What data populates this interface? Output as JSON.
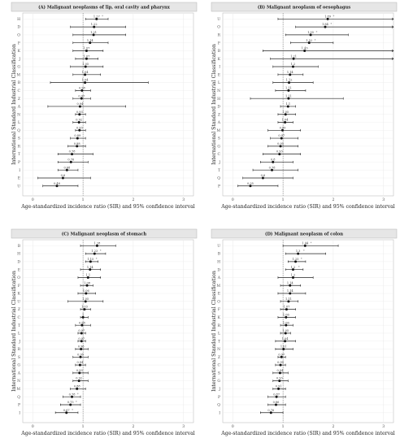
{
  "chart_data": [
    {
      "type": "forest",
      "title": "(A) Malignant neoplasms of lip, oral cavity and pharynx",
      "xlabel": "Age-standardized incidence ratio (SIR) and 95% confidence interval",
      "ylabel": "International Standard Industrial Classification",
      "xlim": [
        -0.2,
        3.2
      ],
      "xticks": [
        0,
        1,
        2,
        3
      ],
      "reference_line": 1,
      "categories": [
        "H",
        "D",
        "O",
        "F",
        "K",
        "J",
        "G",
        "M",
        "B",
        "C",
        "Z",
        "A",
        "N",
        "L",
        "Q",
        "S",
        "R",
        "T",
        "P",
        "I",
        "E",
        "U"
      ],
      "sir": [
        1.27,
        1.22,
        1.21,
        1.14,
        1.07,
        1.07,
        1.05,
        1.04,
        1.04,
        0.98,
        0.97,
        0.94,
        0.93,
        0.92,
        0.93,
        0.89,
        0.88,
        0.78,
        0.76,
        0.68,
        0.6,
        0.48
      ],
      "lower": [
        1.05,
        0.75,
        0.8,
        0.8,
        0.8,
        0.85,
        0.75,
        0.8,
        0.35,
        0.85,
        0.8,
        0.3,
        0.85,
        0.8,
        0.85,
        0.75,
        0.7,
        0.5,
        0.5,
        0.5,
        0.1,
        0.2
      ],
      "upper": [
        1.5,
        1.85,
        1.85,
        1.5,
        1.4,
        1.3,
        1.4,
        1.35,
        2.3,
        1.15,
        1.15,
        1.85,
        1.05,
        1.05,
        1.05,
        1.05,
        1.05,
        1.2,
        1.1,
        0.9,
        1.15,
        0.9
      ],
      "significance": [
        "*",
        "",
        "",
        "",
        "",
        "",
        "",
        "",
        "",
        "",
        "",
        "",
        "",
        "",
        "",
        "",
        "",
        "",
        "",
        "",
        "",
        ""
      ]
    },
    {
      "type": "forest",
      "title": "(B) Malignant neoplasm of oesophagus",
      "xlabel": "Age-standardized incidence ratio (SIR) and 95% confidence interval",
      "ylabel": "International Standard Industrial Classification",
      "xlim": [
        -0.2,
        3.2
      ],
      "xticks": [
        0,
        1,
        2,
        3
      ],
      "reference_line": 1,
      "categories": [
        "U",
        "O",
        "R",
        "F",
        "B",
        "K",
        "I",
        "E",
        "L",
        "N",
        "H",
        "D",
        "Z",
        "A",
        "M",
        "S",
        "G",
        "C",
        "J",
        "T",
        "Q",
        "P"
      ],
      "sir": [
        1.89,
        1.84,
        1.55,
        1.52,
        1.43,
        1.21,
        1.2,
        1.14,
        1.12,
        1.11,
        1.11,
        1.1,
        1.05,
        1.04,
        0.99,
        0.97,
        0.95,
        0.93,
        0.8,
        0.78,
        0.6,
        0.35
      ],
      "lower": [
        0.9,
        1.25,
        1.05,
        1.15,
        0.6,
        0.75,
        0.8,
        0.9,
        0.8,
        0.85,
        0.35,
        0.95,
        0.9,
        0.9,
        0.7,
        0.75,
        0.7,
        0.6,
        0.55,
        0.4,
        0.2,
        0.1
      ],
      "upper": [
        3.2,
        3.2,
        2.3,
        2.0,
        3.2,
        3.2,
        1.7,
        1.4,
        1.6,
        1.45,
        2.2,
        1.25,
        1.25,
        1.2,
        1.35,
        1.3,
        1.3,
        1.35,
        1.2,
        1.3,
        1.2,
        0.9
      ],
      "significance": [
        "*",
        "*",
        "*",
        "*",
        "",
        "",
        "",
        "",
        "",
        "",
        "",
        "",
        "",
        "",
        "",
        "",
        "",
        "",
        "",
        "",
        "",
        ""
      ]
    },
    {
      "type": "forest",
      "title": "(C) Malignant neoplasm of stomach",
      "xlabel": "Age-standardized incidence ratio (SIR) and 95% confidence interval",
      "ylabel": "International Standard Industrial Classification",
      "xlim": [
        -0.2,
        3.2
      ],
      "xticks": [
        0,
        1,
        2,
        3
      ],
      "reference_line": 1,
      "categories": [
        "B",
        "H",
        "D",
        "E",
        "O",
        "F",
        "K",
        "U",
        "Z",
        "C",
        "T",
        "L",
        "J",
        "R",
        "S",
        "G",
        "A",
        "N",
        "M",
        "Q",
        "P",
        "I"
      ],
      "sir": [
        1.28,
        1.23,
        1.15,
        1.14,
        1.1,
        1.08,
        1.06,
        1.05,
        1.03,
        1.0,
        0.98,
        0.97,
        0.97,
        0.96,
        0.95,
        0.94,
        0.93,
        0.92,
        0.88,
        0.78,
        0.75,
        0.67
      ],
      "lower": [
        0.95,
        1.05,
        1.05,
        0.95,
        0.9,
        0.95,
        0.9,
        0.7,
        0.95,
        0.95,
        0.85,
        0.9,
        0.9,
        0.85,
        0.8,
        0.85,
        0.8,
        0.8,
        0.75,
        0.6,
        0.55,
        0.45
      ],
      "upper": [
        1.65,
        1.45,
        1.3,
        1.35,
        1.35,
        1.2,
        1.25,
        1.4,
        1.15,
        1.1,
        1.15,
        1.05,
        1.05,
        1.1,
        1.1,
        1.05,
        1.1,
        1.1,
        1.05,
        0.95,
        0.95,
        0.9
      ],
      "significance": [
        "",
        "*",
        "*",
        "",
        "",
        "",
        "",
        "",
        "",
        "",
        "",
        "",
        "",
        "",
        "",
        "",
        "",
        "",
        "",
        "*",
        "*",
        "*"
      ]
    },
    {
      "type": "forest",
      "title": "(D) Malignant neoplasm of colon",
      "xlabel": "Age-standardized incidence ratio (SIR) and 95% confidence interval",
      "ylabel": "International Standard Industrial Classification",
      "xlim": [
        -0.2,
        3.2
      ],
      "xticks": [
        0,
        1,
        2,
        3
      ],
      "reference_line": 1,
      "categories": [
        "U",
        "B",
        "H",
        "D",
        "A",
        "M",
        "E",
        "O",
        "F",
        "K",
        "R",
        "L",
        "T",
        "N",
        "Z",
        "C",
        "S",
        "G",
        "J",
        "P",
        "Q",
        "I"
      ],
      "sir": [
        1.44,
        1.3,
        1.25,
        1.2,
        1.2,
        1.14,
        1.14,
        1.11,
        1.07,
        1.06,
        1.06,
        1.05,
        1.04,
        1.01,
        0.97,
        0.95,
        0.94,
        0.93,
        0.91,
        0.87,
        0.86,
        0.76
      ],
      "lower": [
        1.0,
        1.05,
        1.1,
        1.05,
        0.9,
        0.95,
        0.9,
        0.95,
        0.95,
        0.9,
        0.95,
        0.95,
        0.85,
        0.85,
        0.9,
        0.85,
        0.8,
        0.8,
        0.8,
        0.7,
        0.7,
        0.55
      ],
      "upper": [
        2.1,
        1.85,
        1.45,
        1.4,
        1.6,
        1.35,
        1.45,
        1.3,
        1.25,
        1.25,
        1.2,
        1.15,
        1.25,
        1.2,
        1.05,
        1.05,
        1.1,
        1.1,
        1.05,
        1.05,
        1.05,
        1.0
      ],
      "significance": [
        "*",
        "*",
        "*",
        "*",
        "",
        "",
        "",
        "",
        "",
        "",
        "",
        "",
        "",
        "",
        "",
        "",
        "",
        "",
        "",
        "",
        "",
        ""
      ]
    }
  ],
  "colors": {
    "title_strip": "#e6e6e6",
    "panel_border": "#b3b3b3",
    "grid": "#ececec",
    "reference_line": "#666666",
    "point": "#111111",
    "whisker": "#222222"
  }
}
